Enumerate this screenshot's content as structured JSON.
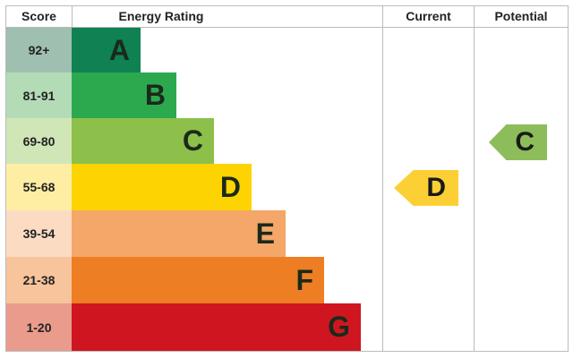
{
  "chart_data": {
    "type": "table",
    "headers": {
      "score": "Score",
      "rating": "Energy Rating",
      "current": "Current",
      "potential": "Potential"
    },
    "bands": [
      {
        "score": "92+",
        "letter": "A",
        "color": "#0f8153",
        "score_bg": "#9fbfb0"
      },
      {
        "score": "81-91",
        "letter": "B",
        "color": "#2ca94f",
        "score_bg": "#b3dcb6"
      },
      {
        "score": "69-80",
        "letter": "C",
        "color": "#8cc04b",
        "score_bg": "#d1e6b7"
      },
      {
        "score": "55-68",
        "letter": "D",
        "color": "#fdd301",
        "score_bg": "#feeea4"
      },
      {
        "score": "39-54",
        "letter": "E",
        "color": "#f4a768",
        "score_bg": "#fbdcc3"
      },
      {
        "score": "21-38",
        "letter": "F",
        "color": "#ee7e23",
        "score_bg": "#f7c49c"
      },
      {
        "score": "1-20",
        "letter": "G",
        "color": "#cf1620",
        "score_bg": "#e99b8c"
      }
    ],
    "current": {
      "letter": "D",
      "color": "#fcd035"
    },
    "potential": {
      "letter": "C",
      "color": "#8cbd5a"
    }
  }
}
